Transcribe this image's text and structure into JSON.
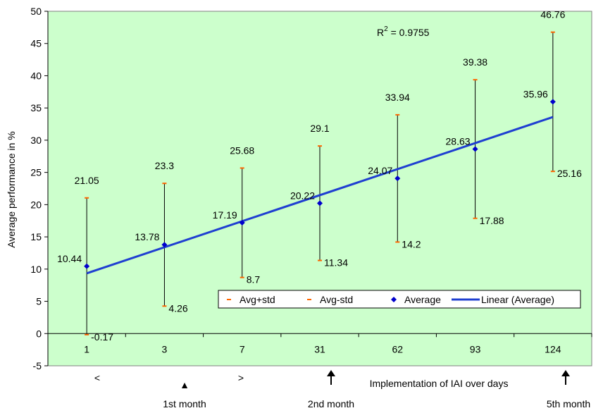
{
  "chart_data": {
    "type": "line",
    "title": "",
    "xlabel": "Implementation of IAI over days",
    "ylabel": "Average performance in %",
    "ylim": [
      -5,
      50
    ],
    "yticks": [
      -5,
      0,
      5,
      10,
      15,
      20,
      25,
      30,
      35,
      40,
      45,
      50
    ],
    "categories": [
      "1",
      "3",
      "7",
      "31",
      "62",
      "93",
      "124"
    ],
    "series": [
      {
        "name": "Avg+std",
        "values": [
          21.05,
          23.3,
          25.68,
          29.1,
          33.94,
          39.38,
          46.76
        ]
      },
      {
        "name": "Avg-std",
        "values": [
          -0.17,
          4.26,
          8.7,
          11.34,
          14.2,
          17.88,
          25.16
        ]
      },
      {
        "name": "Average",
        "values": [
          10.44,
          13.78,
          17.19,
          20.22,
          24.07,
          28.63,
          35.96
        ]
      },
      {
        "name": "Linear (Average)"
      }
    ],
    "data_labels": {
      "upper": [
        "21.05",
        "23.3",
        "25.68",
        "29.1",
        "33.94",
        "39.38",
        "46.76"
      ],
      "lower": [
        "-0.17",
        "4.26",
        "8.7",
        "11.34",
        "14.2",
        "17.88",
        "25.16"
      ],
      "average": [
        "10.44",
        "13.78",
        "17.19",
        "20.22",
        "24.07",
        "28.63",
        "35.96"
      ]
    },
    "r_squared_label": "R",
    "r_squared_sup": "2",
    "r_squared_value": " = 0.9755",
    "legend_position": "bottom-right",
    "grid": false,
    "colors": {
      "plot_bg": "#ccffcc",
      "avg": "#0000cc",
      "trend": "#1f3fd1",
      "std": "#ff6600",
      "error_bar": "#000000"
    },
    "annotations": {
      "less_than": "<",
      "greater_than": ">",
      "triangle": "▲",
      "month_1": "1st month",
      "month_2": "2nd month",
      "month_5": "5th month"
    }
  }
}
